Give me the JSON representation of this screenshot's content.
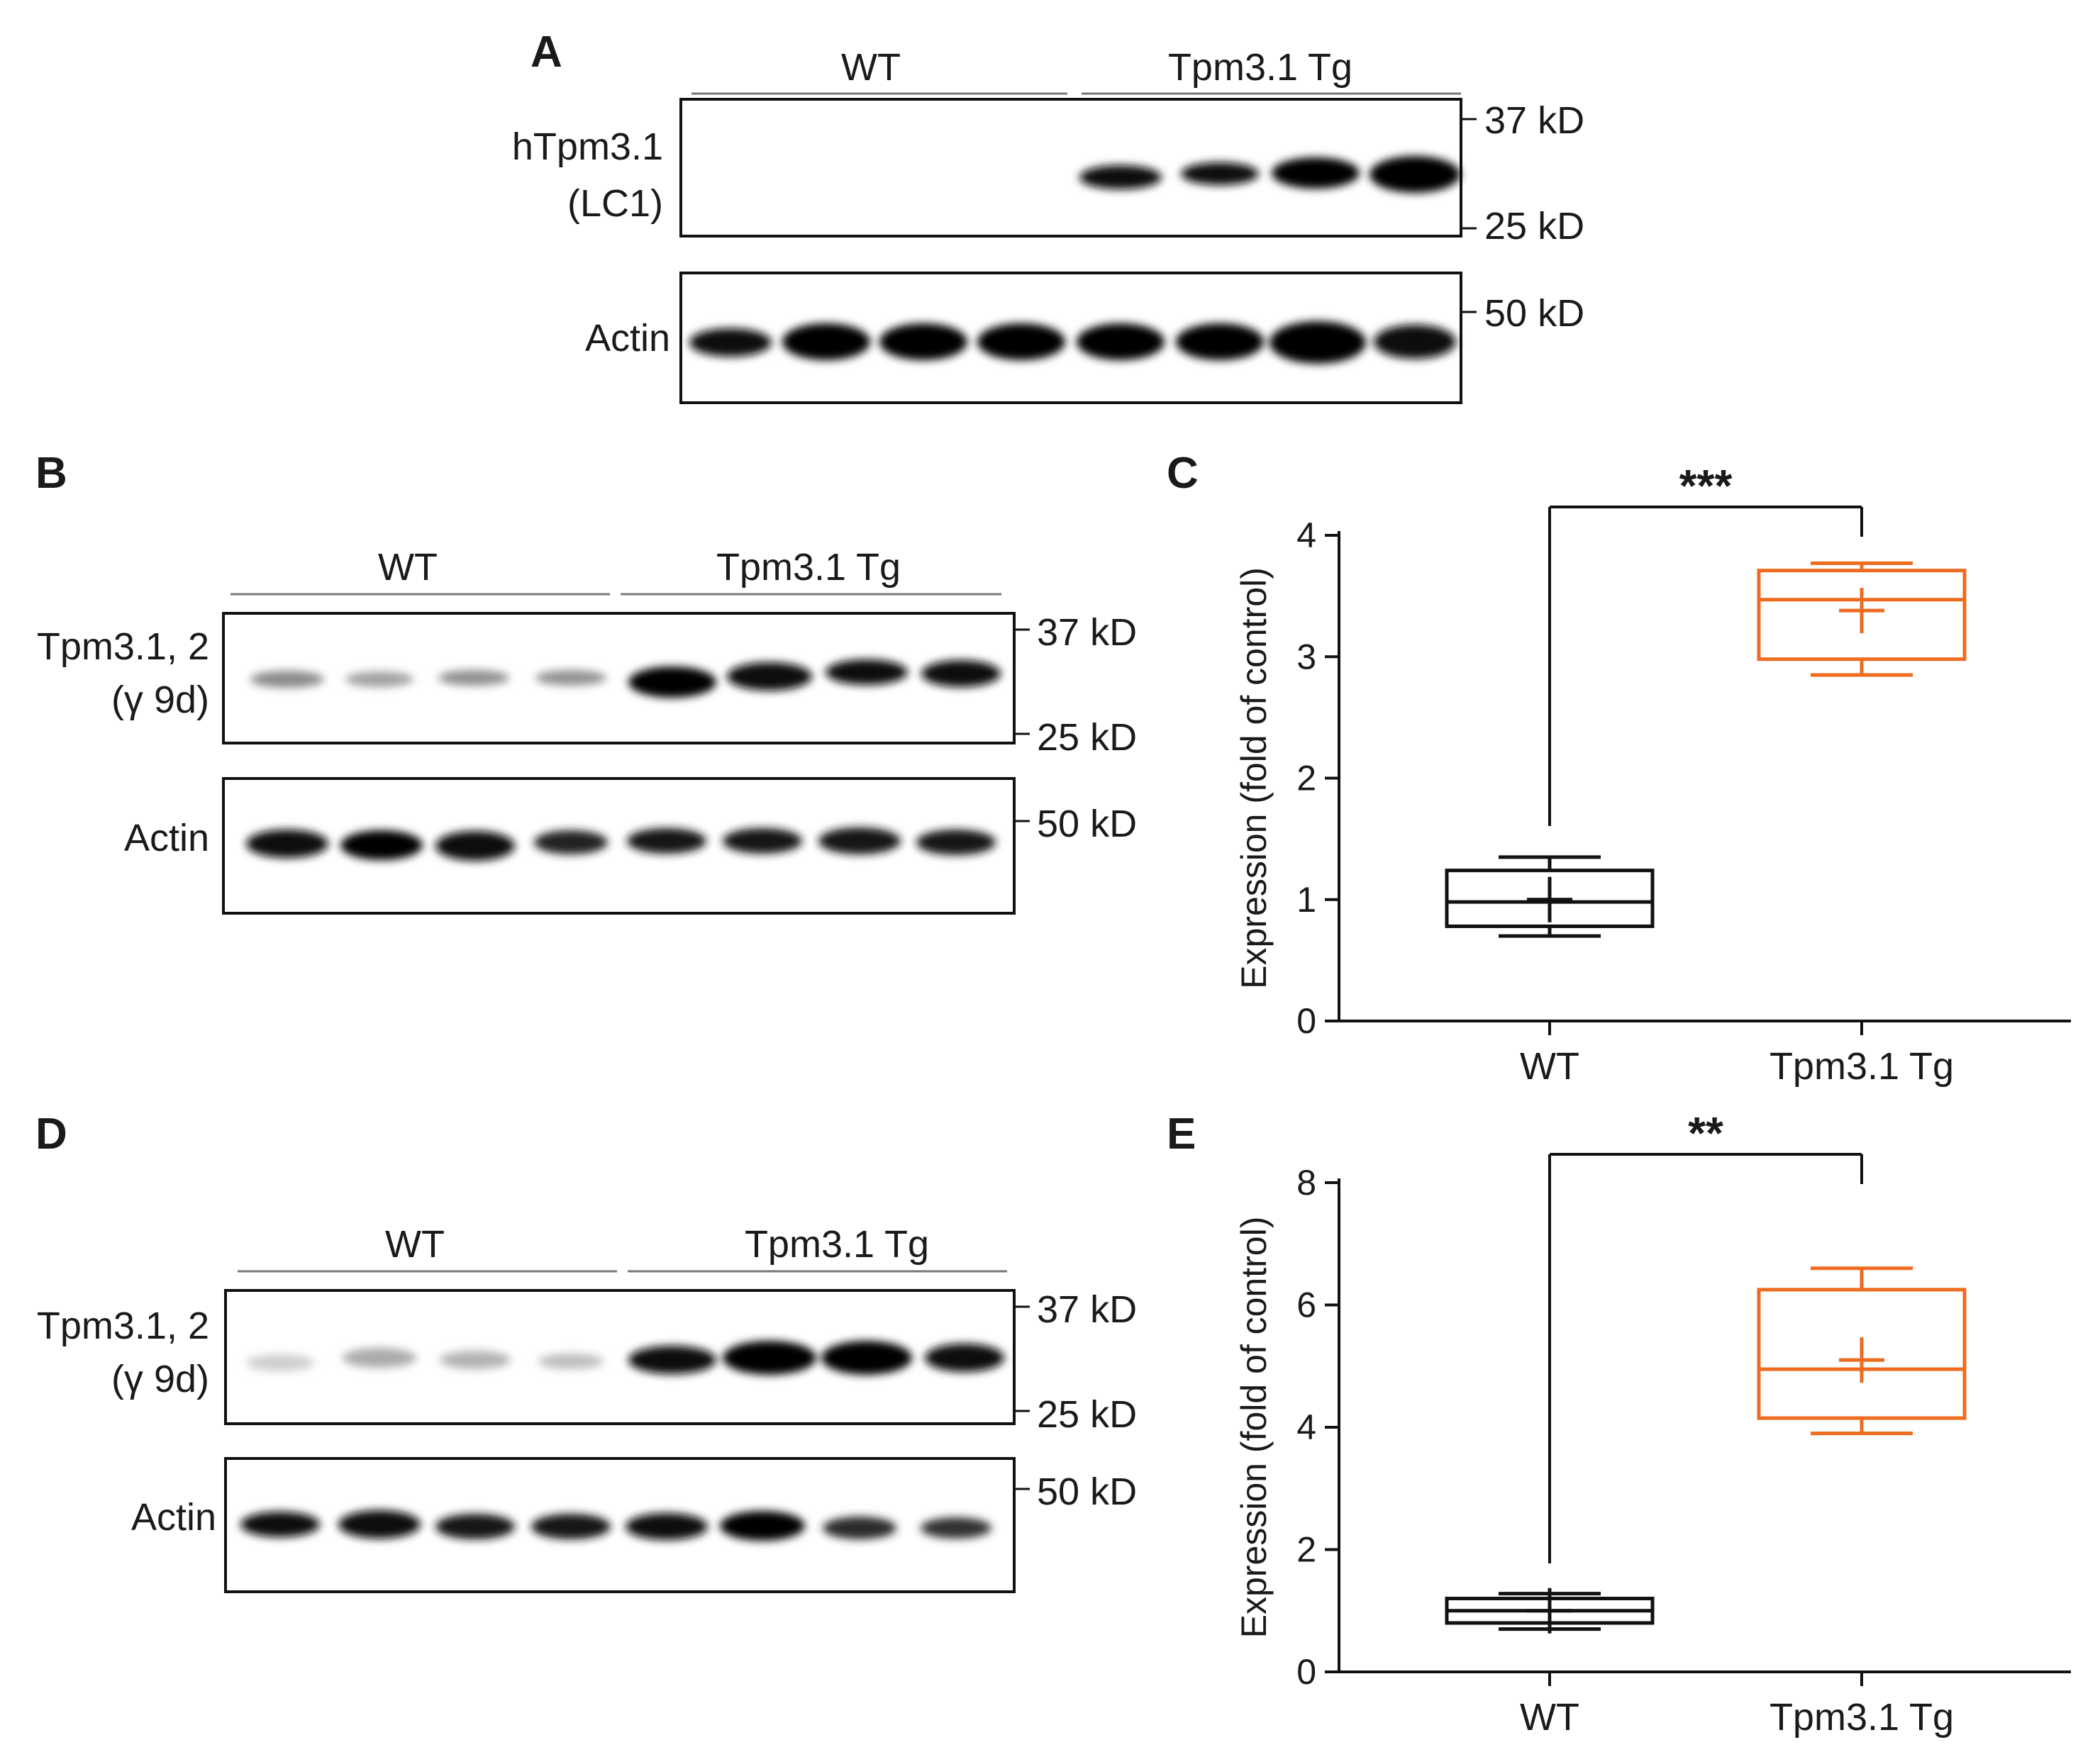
{
  "colors": {
    "wt": "#111111",
    "tg": "#ee6b1f",
    "grey_line": "#777777"
  },
  "panel_a": {
    "letter": "A",
    "groups": [
      "WT",
      "Tpm3.1 Tg"
    ],
    "blot1_label": [
      "hTpm3.1",
      "(LC1)"
    ],
    "blot1_markers": [
      "37 kD",
      "25 kD"
    ],
    "blot2_label": "Actin",
    "blot2_markers": [
      "50 kD"
    ],
    "lanes_per_group": 4
  },
  "panel_b": {
    "letter": "B",
    "groups": [
      "WT",
      "Tpm3.1 Tg"
    ],
    "blot1_label": [
      "Tpm3.1, 2",
      "(γ 9d)"
    ],
    "blot1_markers": [
      "37 kD",
      "25 kD"
    ],
    "blot2_label": "Actin",
    "blot2_markers": [
      "50 kD"
    ],
    "lanes_per_group": 4
  },
  "panel_d": {
    "letter": "D",
    "groups": [
      "WT",
      "Tpm3.1 Tg"
    ],
    "blot1_label": [
      "Tpm3.1, 2",
      "(γ 9d)"
    ],
    "blot1_markers": [
      "37 kD",
      "25 kD"
    ],
    "blot2_label": "Actin",
    "blot2_markers": [
      "50 kD"
    ],
    "lanes_per_group": 4
  },
  "chart_data": [
    {
      "panel": "C",
      "type": "box",
      "ylabel": "Expression (fold of control)",
      "ylim": [
        0,
        4
      ],
      "yticks": [
        0,
        1,
        2,
        3,
        4
      ],
      "categories": [
        "WT",
        "Tpm3.1 Tg"
      ],
      "boxes": [
        {
          "category": "WT",
          "min": 0.7,
          "q1": 0.78,
          "median": 0.98,
          "q3": 1.24,
          "max": 1.35,
          "mean": 1.0
        },
        {
          "category": "Tpm3.1 Tg",
          "min": 2.85,
          "q1": 2.98,
          "median": 3.47,
          "q3": 3.71,
          "max": 3.77,
          "mean": 3.38
        }
      ],
      "significance": "***"
    },
    {
      "panel": "E",
      "type": "box",
      "ylabel": "Expression (fold of control)",
      "ylim": [
        0,
        8
      ],
      "yticks": [
        0,
        2,
        4,
        6,
        8
      ],
      "categories": [
        "WT",
        "Tpm3.1 Tg"
      ],
      "boxes": [
        {
          "category": "WT",
          "min": 0.7,
          "q1": 0.8,
          "median": 1.0,
          "q3": 1.2,
          "max": 1.28,
          "mean": 1.0
        },
        {
          "category": "Tpm3.1 Tg",
          "min": 3.9,
          "q1": 4.15,
          "median": 4.95,
          "q3": 6.25,
          "max": 6.6,
          "mean": 5.1
        }
      ],
      "significance": "**"
    }
  ]
}
